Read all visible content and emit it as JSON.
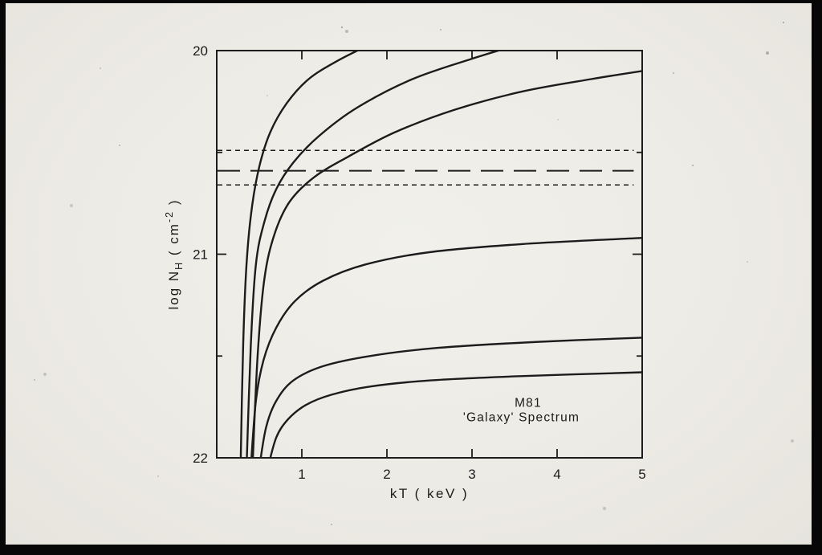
{
  "photo": {
    "border_color": "#070707",
    "paper_color": "#edebe5",
    "ink_color": "#1c1c1c"
  },
  "chart_data": {
    "type": "line",
    "title": "",
    "xlabel": "kT ( keV )",
    "ylabel_plain": "log NH ( cm-2 )",
    "ylabel_segments": [
      {
        "t": "log N",
        "s": "n"
      },
      {
        "t": "H",
        "s": "sub"
      },
      {
        "t": " ( cm",
        "s": "n"
      },
      {
        "t": "-2",
        "s": "sup"
      },
      {
        "t": " )",
        "s": "n"
      }
    ],
    "xlim": [
      0,
      5
    ],
    "ylim": [
      20,
      22
    ],
    "y_axis_direction": "increasing-downward",
    "grid": false,
    "legend": false,
    "x_ticks": [
      1,
      2,
      3,
      4,
      5
    ],
    "x_tick_labels": [
      "1",
      "2",
      "3",
      "4",
      "5"
    ],
    "x_top_ticks": [
      1,
      2,
      3,
      4
    ],
    "y_ticks": [
      20,
      21,
      22
    ],
    "y_tick_labels": [
      "20",
      "21",
      "22"
    ],
    "y_minor_ticks": [
      20.5,
      21.5
    ],
    "series": [
      {
        "name": "upper-contour-1",
        "x": [
          0.28,
          0.31,
          0.35,
          0.41,
          0.5,
          0.63,
          0.82,
          1.08,
          1.42,
          1.8
        ],
        "y": [
          22.05,
          21.45,
          21.05,
          20.78,
          20.57,
          20.4,
          20.26,
          20.14,
          20.05,
          19.97
        ]
      },
      {
        "name": "upper-contour-2",
        "x": [
          0.35,
          0.4,
          0.46,
          0.56,
          0.7,
          0.9,
          1.2,
          1.65,
          2.3,
          3.0,
          3.55
        ],
        "y": [
          22.05,
          21.45,
          21.05,
          20.84,
          20.68,
          20.55,
          20.42,
          20.28,
          20.14,
          20.04,
          19.97
        ]
      },
      {
        "name": "upper-contour-3",
        "x": [
          0.42,
          0.48,
          0.56,
          0.68,
          0.86,
          1.15,
          1.55,
          2.1,
          2.8,
          3.6,
          4.4,
          5.0
        ],
        "y": [
          22.05,
          21.5,
          21.12,
          20.9,
          20.74,
          20.62,
          20.52,
          20.4,
          20.29,
          20.2,
          20.14,
          20.1
        ]
      },
      {
        "name": "lower-contour-1",
        "x": [
          0.4,
          0.46,
          0.55,
          0.7,
          0.92,
          1.25,
          1.75,
          2.5,
          3.6,
          5.0
        ],
        "y": [
          22.05,
          21.72,
          21.52,
          21.36,
          21.23,
          21.13,
          21.05,
          20.99,
          20.95,
          20.92
        ]
      },
      {
        "name": "lower-contour-2",
        "x": [
          0.5,
          0.58,
          0.7,
          0.9,
          1.25,
          1.8,
          2.6,
          3.8,
          5.0
        ],
        "y": [
          22.05,
          21.85,
          21.72,
          21.62,
          21.55,
          21.5,
          21.46,
          21.43,
          21.41
        ]
      },
      {
        "name": "lower-contour-3",
        "x": [
          0.6,
          0.7,
          0.84,
          1.05,
          1.35,
          1.8,
          2.5,
          3.5,
          5.0
        ],
        "y": [
          22.05,
          21.9,
          21.81,
          21.74,
          21.69,
          21.65,
          21.62,
          21.6,
          21.58
        ]
      }
    ],
    "reference_lines": [
      {
        "name": "nh-upper-dashed-line",
        "y": 20.49,
        "style": "short-dash",
        "x_start": 0.0,
        "x_end": 4.9
      },
      {
        "name": "nh-best-fit-dashed-line",
        "y": 20.59,
        "style": "long-dash",
        "x_start": 0.0,
        "x_end": 4.9
      },
      {
        "name": "nh-lower-dashed-line",
        "y": 20.66,
        "style": "short-dash",
        "x_start": 0.0,
        "x_end": 4.9
      }
    ],
    "annotations": [
      {
        "name": "annotation-m81",
        "text": "M81",
        "x": 3.66,
        "y": 21.75
      },
      {
        "name": "annotation-galaxy-spectrum",
        "text": "'Galaxy' Spectrum",
        "x": 3.58,
        "y": 21.82
      }
    ]
  }
}
